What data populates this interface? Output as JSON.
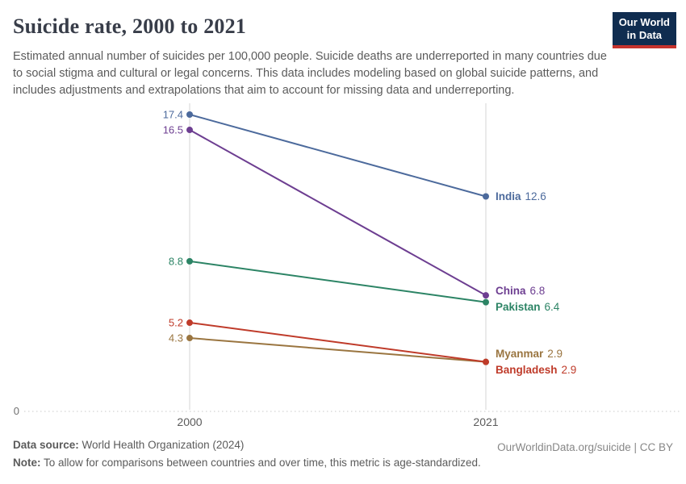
{
  "header": {
    "title": "Suicide rate, 2000 to 2021",
    "subtitle": "Estimated annual number of suicides per 100,000 people. Suicide deaths are underreported in many countries due to social stigma and cultural or legal concerns. This data includes modeling based on global suicide patterns, and includes adjustments and extrapolations that aim to account for missing data and underreporting.",
    "logo": {
      "line1": "Our World",
      "line2": "in Data",
      "bg_color": "#102d50",
      "accent_color": "#c5332d"
    }
  },
  "chart_data": {
    "type": "line",
    "title": "Suicide rate, 2000 to 2021",
    "x": [
      2000,
      2021
    ],
    "x_tick_labels": [
      "2000",
      "2021"
    ],
    "y_baseline_label": "0",
    "ylim": [
      0,
      18.1
    ],
    "grid": "dotted-baseline-only",
    "legend_position": "end-of-line-labels",
    "series": [
      {
        "name": "India",
        "values": [
          17.4,
          12.6
        ],
        "color": "#4c6a9c"
      },
      {
        "name": "China",
        "values": [
          16.5,
          6.8
        ],
        "color": "#6d3e91"
      },
      {
        "name": "Pakistan",
        "values": [
          8.8,
          6.4
        ],
        "color": "#2c8465"
      },
      {
        "name": "Myanmar",
        "values": [
          4.3,
          2.9
        ],
        "color": "#9a7540"
      },
      {
        "name": "Bangladesh",
        "values": [
          5.2,
          2.9
        ],
        "color": "#bf3b2a"
      }
    ],
    "axis_color": "#d4d4d4",
    "baseline_color": "#c9c9c9",
    "tick_label_color": "#5b5b5b",
    "zero_label_color": "#6e6e6e"
  },
  "footer": {
    "data_source_label": "Data source:",
    "data_source_value": " World Health Organization (2024)",
    "note_label": "Note:",
    "note_value": " To allow for comparisons between countries and over time, this metric is age-standardized.",
    "attribution": "OurWorldinData.org/suicide | CC BY"
  }
}
